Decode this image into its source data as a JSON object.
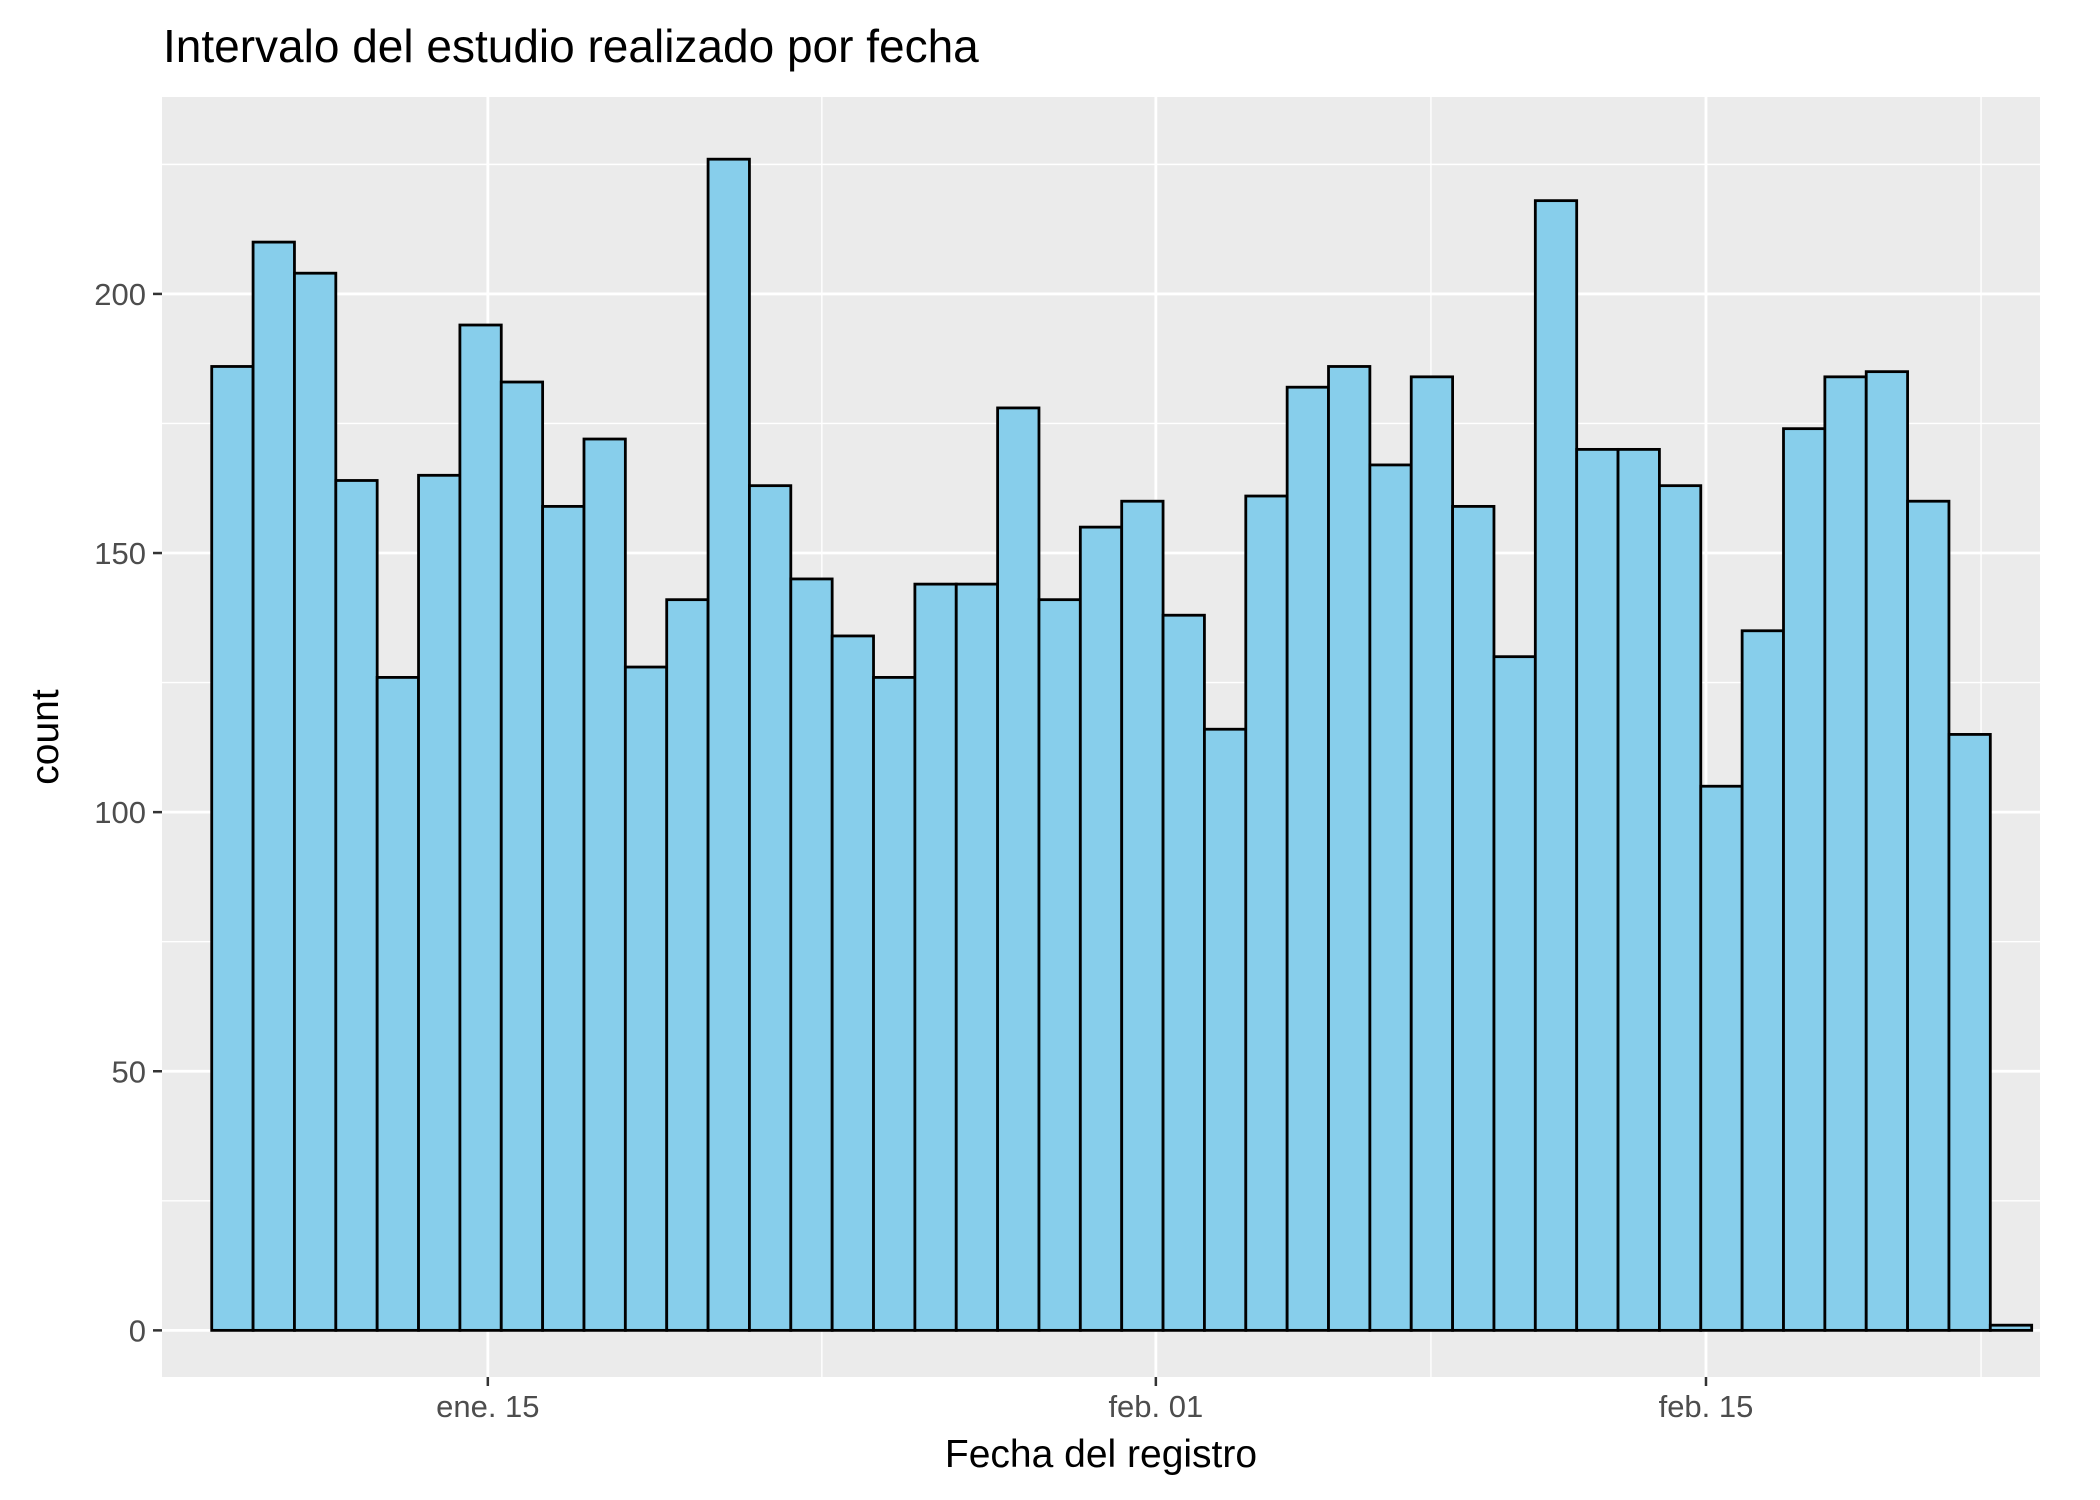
{
  "chart_data": {
    "type": "bar",
    "subtype": "histogram",
    "title": "Intervalo del estudio realizado por fecha",
    "xlabel": "Fecha del registro",
    "ylabel": "count",
    "x_ticks": [
      {
        "label": "ene. 15",
        "date": "2021-01-15"
      },
      {
        "label": "feb. 01",
        "date": "2021-02-01"
      },
      {
        "label": "feb. 15",
        "date": "2021-02-15"
      }
    ],
    "y_ticks": [
      0,
      50,
      100,
      150,
      200
    ],
    "ylim": [
      -9,
      238
    ],
    "xlim": [
      "2021-01-06T17:00",
      "2021-02-23T12:00"
    ],
    "bins": {
      "first_center": "2021-01-08T12:00",
      "width_days": 1.0526,
      "values": [
        186,
        210,
        204,
        164,
        126,
        165,
        194,
        183,
        159,
        172,
        128,
        141,
        226,
        163,
        145,
        134,
        126,
        144,
        144,
        178,
        141,
        155,
        160,
        138,
        116,
        161,
        182,
        186,
        167,
        184,
        159,
        130,
        218,
        170,
        170,
        163,
        105,
        135,
        174,
        184,
        185,
        160,
        115,
        1
      ]
    },
    "grid": true,
    "legend": "none",
    "colors": {
      "fill": "#87ceeb",
      "outline": "#000000",
      "panel": "#ebebeb",
      "gridline": "#ffffff",
      "tick_text": "#4d4d4d"
    }
  }
}
